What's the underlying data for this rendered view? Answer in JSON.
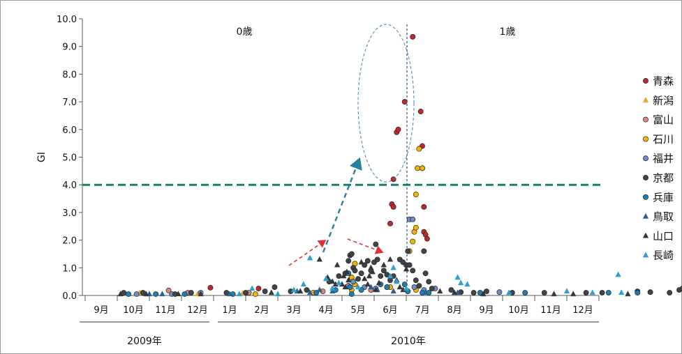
{
  "chart_data": {
    "type": "scatter",
    "ylabel": "GI",
    "ylim": [
      0,
      10
    ],
    "yticks": [
      "0.0",
      "1.0",
      "2.0",
      "3.0",
      "4.0",
      "5.0",
      "6.0",
      "7.0",
      "8.0",
      "9.0",
      "10.0"
    ],
    "months": [
      "9月",
      "10月",
      "11月",
      "12月",
      "1月",
      "2月",
      "3月",
      "4月",
      "5月",
      "6月",
      "7月",
      "8月",
      "9月",
      "10月",
      "11月",
      "12月"
    ],
    "years": [
      "2009年",
      "2010年"
    ],
    "age_labels": [
      "0歳",
      "1歳"
    ],
    "threshold": 4.0,
    "colors": {
      "threshold": "#1b7f6e",
      "ellipse": "#3a7fae",
      "divider": "#2d4a7a",
      "arrow_red": "#e03030",
      "arrow_teal": "#2a7fa0"
    },
    "series": [
      {
        "name": "青森",
        "marker": "circle",
        "color": "#c0272d",
        "points": [
          [
            12.9,
            0.28
          ],
          [
            14.4,
            0.25
          ],
          [
            18.5,
            2.6
          ],
          [
            18.55,
            3.3
          ],
          [
            18.6,
            3.2
          ],
          [
            18.7,
            5.9
          ],
          [
            18.75,
            6.0
          ],
          [
            18.95,
            7.0
          ],
          [
            19.2,
            9.35
          ],
          [
            19.45,
            6.65
          ],
          [
            19.5,
            5.4
          ],
          [
            19.5,
            4.6
          ],
          [
            19.55,
            3.2
          ],
          [
            19.55,
            2.3
          ],
          [
            19.6,
            2.2
          ],
          [
            19.65,
            2.05
          ],
          [
            18.6,
            4.2
          ]
        ]
      },
      {
        "name": "新潟",
        "marker": "triangle",
        "color": "#f4a32a",
        "points": [
          [
            10.7,
            0.1
          ],
          [
            12.5,
            0.05
          ],
          [
            13.9,
            0.07
          ]
        ]
      },
      {
        "name": "富山",
        "marker": "circle",
        "color": "#d98a78",
        "points": [
          [
            11.6,
            0.18
          ],
          [
            12.2,
            0.1
          ],
          [
            14.1,
            0.1
          ],
          [
            16.4,
            0.15
          ],
          [
            17.9,
            0.2
          ]
        ]
      },
      {
        "name": "石川",
        "marker": "circle",
        "color": "#f5b400",
        "points": [
          [
            14.3,
            0.05
          ],
          [
            16.1,
            0.1
          ],
          [
            17.3,
            0.65
          ],
          [
            17.3,
            0.2
          ],
          [
            17.35,
            0.5
          ],
          [
            17.4,
            1.15
          ],
          [
            17.4,
            0.4
          ],
          [
            18.5,
            0.3
          ],
          [
            19.1,
            1.6
          ],
          [
            19.2,
            1.95
          ],
          [
            19.25,
            2.3
          ],
          [
            19.3,
            2.45
          ],
          [
            19.3,
            3.65
          ],
          [
            19.35,
            4.6
          ],
          [
            19.4,
            5.3
          ],
          [
            19.5,
            4.6
          ],
          [
            19.3,
            0.2
          ]
        ]
      },
      {
        "name": "福井",
        "marker": "circle",
        "color": "#6b8fc4",
        "points": [
          [
            10.6,
            0.05
          ],
          [
            11.7,
            0.05
          ],
          [
            12.6,
            0.1
          ],
          [
            17.2,
            0.35
          ],
          [
            17.35,
            0.5
          ],
          [
            17.7,
            0.3
          ],
          [
            18.05,
            0.25
          ],
          [
            18.4,
            0.3
          ],
          [
            19.1,
            2.75
          ],
          [
            19.2,
            2.75
          ],
          [
            19.25,
            0.3
          ],
          [
            19.55,
            0.2
          ],
          [
            19.9,
            0.25
          ],
          [
            21.9,
            0.12
          ]
        ]
      },
      {
        "name": "京都",
        "marker": "circle",
        "color": "#404348",
        "points": [
          [
            10.2,
            0.1
          ],
          [
            10.8,
            0.1
          ],
          [
            11.8,
            0.05
          ],
          [
            12.3,
            0.1
          ],
          [
            13.4,
            0.1
          ],
          [
            14.0,
            0.1
          ],
          [
            14.6,
            0.15
          ],
          [
            14.9,
            0.3
          ],
          [
            15.4,
            0.15
          ],
          [
            15.9,
            0.2
          ],
          [
            16.6,
            0.5
          ],
          [
            16.9,
            0.7
          ],
          [
            17.1,
            0.8
          ],
          [
            17.2,
            1.25
          ],
          [
            17.25,
            1.45
          ],
          [
            17.3,
            1.5
          ],
          [
            17.35,
            1.0
          ],
          [
            17.4,
            0.9
          ],
          [
            17.5,
            0.6
          ],
          [
            17.6,
            0.8
          ],
          [
            17.7,
            1.1
          ],
          [
            17.8,
            1.25
          ],
          [
            17.9,
            0.9
          ],
          [
            18.0,
            1.2
          ],
          [
            18.05,
            1.85
          ],
          [
            18.1,
            1.3
          ],
          [
            18.2,
            0.7
          ],
          [
            18.3,
            0.9
          ],
          [
            18.4,
            0.75
          ],
          [
            18.5,
            0.55
          ],
          [
            18.6,
            0.7
          ],
          [
            18.8,
            1.3
          ],
          [
            18.9,
            1.2
          ],
          [
            19.0,
            1.1
          ],
          [
            19.05,
            1.6
          ],
          [
            19.1,
            1.1
          ],
          [
            19.2,
            0.9
          ],
          [
            19.3,
            0.55
          ],
          [
            19.4,
            0.35
          ],
          [
            19.55,
            1.6
          ],
          [
            19.6,
            0.8
          ],
          [
            19.7,
            0.5
          ],
          [
            19.8,
            0.25
          ],
          [
            20.4,
            0.2
          ],
          [
            20.7,
            0.12
          ],
          [
            21.1,
            0.1
          ],
          [
            21.5,
            0.15
          ],
          [
            22.3,
            0.1
          ],
          [
            23.3,
            0.1
          ],
          [
            24.6,
            0.1
          ],
          [
            25.1,
            0.1
          ],
          [
            26.2,
            0.15
          ],
          [
            26.6,
            0.12
          ],
          [
            27.2,
            0.1
          ],
          [
            27.5,
            0.2
          ],
          [
            27.6,
            0.25
          ]
        ]
      },
      {
        "name": "兵庫",
        "marker": "circle",
        "color": "#1f7fb5",
        "points": [
          [
            10.35,
            0.05
          ],
          [
            11.2,
            0.05
          ],
          [
            12.1,
            0.05
          ],
          [
            13.6,
            0.05
          ],
          [
            16.2,
            0.1
          ],
          [
            16.8,
            0.2
          ],
          [
            17.2,
            0.8
          ],
          [
            17.25,
            0.3
          ],
          [
            17.3,
            0.05
          ],
          [
            17.6,
            0.2
          ],
          [
            18.2,
            0.4
          ],
          [
            18.4,
            0.3
          ],
          [
            18.95,
            0.4
          ],
          [
            19.05,
            0.15
          ],
          [
            19.5,
            0.1
          ],
          [
            19.7,
            0.1
          ],
          [
            21.3,
            0.1
          ],
          [
            22.7,
            0.1
          ],
          [
            25.3,
            0.1
          ],
          [
            26.2,
            0.1
          ]
        ]
      },
      {
        "name": "鳥取",
        "marker": "triangle",
        "color": "#2b5f8e",
        "points": [
          [
            11.0,
            0.05
          ],
          [
            11.4,
            0.05
          ],
          [
            13.5,
            0.05
          ],
          [
            15.6,
            0.15
          ],
          [
            16.0,
            0.1
          ],
          [
            16.3,
            0.2
          ],
          [
            16.7,
            0.15
          ],
          [
            17.9,
            0.3
          ],
          [
            18.1,
            0.2
          ],
          [
            18.6,
            0.15
          ],
          [
            19.6,
            0.1
          ],
          [
            20.6,
            0.1
          ]
        ]
      },
      {
        "name": "山口",
        "marker": "triangle",
        "color": "#33363a",
        "points": [
          [
            10.1,
            0.05
          ],
          [
            10.9,
            0.05
          ],
          [
            11.9,
            0.05
          ],
          [
            12.6,
            0.05
          ],
          [
            14.8,
            0.1
          ],
          [
            15.7,
            0.15
          ],
          [
            16.3,
            1.3
          ],
          [
            16.55,
            0.65
          ],
          [
            16.7,
            0.5
          ],
          [
            16.8,
            0.4
          ],
          [
            16.85,
            1.1
          ],
          [
            17.0,
            0.4
          ],
          [
            17.05,
            0.7
          ],
          [
            17.1,
            0.3
          ],
          [
            17.15,
            0.85
          ],
          [
            17.2,
            0.55
          ],
          [
            17.6,
            1.2
          ],
          [
            17.7,
            0.6
          ],
          [
            17.8,
            0.4
          ],
          [
            17.85,
            0.7
          ],
          [
            17.9,
            1.0
          ],
          [
            17.95,
            0.85
          ],
          [
            18.05,
            0.2
          ],
          [
            18.15,
            0.45
          ],
          [
            18.3,
            1.1
          ],
          [
            18.5,
            1.3
          ],
          [
            18.7,
            0.55
          ],
          [
            18.8,
            0.3
          ],
          [
            18.9,
            0.2
          ],
          [
            19.0,
            0.95
          ],
          [
            20.05,
            0.15
          ],
          [
            20.5,
            0.1
          ],
          [
            21.4,
            0.05
          ],
          [
            23.6,
            0.05
          ],
          [
            24.2,
            0.05
          ],
          [
            25.9,
            0.05
          ]
        ]
      },
      {
        "name": "長崎",
        "marker": "triangle",
        "color": "#2ea0d0",
        "points": [
          [
            13.8,
            0.05
          ],
          [
            14.2,
            0.25
          ],
          [
            15.0,
            0.05
          ],
          [
            15.5,
            0.2
          ],
          [
            15.8,
            0.4
          ],
          [
            16.0,
            1.35
          ],
          [
            16.5,
            0.6
          ],
          [
            16.7,
            0.25
          ],
          [
            16.9,
            0.45
          ],
          [
            17.5,
            0.3
          ],
          [
            18.5,
            0.7
          ],
          [
            18.6,
            1.0
          ],
          [
            18.7,
            0.5
          ],
          [
            19.0,
            0.25
          ],
          [
            20.6,
            0.65
          ],
          [
            20.7,
            0.45
          ],
          [
            20.9,
            0.4
          ],
          [
            22.2,
            0.1
          ],
          [
            24.0,
            0.15
          ],
          [
            24.8,
            0.1
          ],
          [
            25.6,
            0.75
          ],
          [
            25.7,
            0.1
          ]
        ]
      }
    ]
  }
}
